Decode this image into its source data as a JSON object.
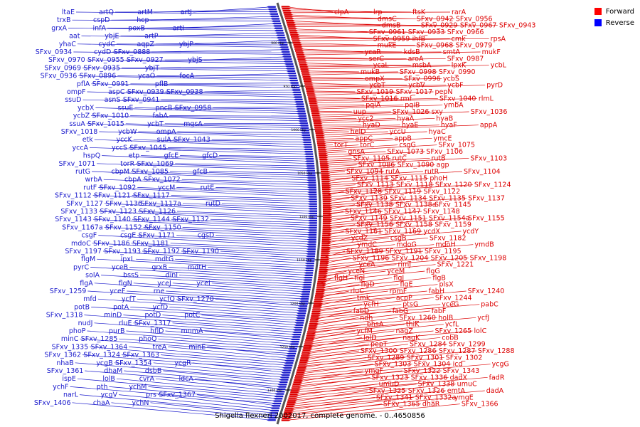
{
  "caption": "Shigella flexneri 2002017, complete genome. - 0..4650856",
  "legend": [
    {
      "label": "Forward",
      "color": "#ff0000"
    },
    {
      "label": "Reverse",
      "color": "#0000ff"
    }
  ],
  "colors": {
    "forward": "#dd0000",
    "reverse": "#1a1acc",
    "axis": "#555555",
    "tick": "#000000"
  },
  "ticks": [
    "900 kbp",
    "950 kbp",
    "1000 kbp",
    "1050 kbp",
    "1100 kbp",
    "1150 kbp",
    "1200 kbp",
    "1250 kbp",
    "1300 kbp"
  ],
  "reverse_labels": [
    "artJ",
    "artM",
    "artQ",
    "ltaE",
    "hcp",
    "cspD",
    "trxB",
    "artI",
    "poxB",
    "infA",
    "grxA",
    "artP",
    "ybjE",
    "aat",
    "ybjP",
    "aqpZ",
    "cydC",
    "yhaC",
    "SFxv_0888",
    "cydD",
    "SFxv_0934",
    "ybjS",
    "SFxv_0927",
    "SFxv_0955",
    "SFxv_0970",
    "ybjT",
    "SFxv_0935",
    "SFxv_0969",
    "focA",
    "ycaO",
    "SFxv_0896",
    "SFxv_0936",
    "pflB",
    "SFxv_0991",
    "pflA",
    "SFxv_0938",
    "SFxv_0939",
    "aspC",
    "ompF",
    "SFxv_0941",
    "asnS",
    "ssuD",
    "SFxv_0958",
    "pncB",
    "ssuE",
    "ycbX",
    "fabA",
    "SFxv_1010",
    "ycbZ",
    "mgsA",
    "ycbT",
    "SFxv_1015",
    "ssuA",
    "ompA",
    "ycbW",
    "SFxv_1018",
    "SFxv_1043",
    "sulA",
    "yccK",
    "etk",
    "SFxv_1045",
    "yccS",
    "yccA",
    "gfcD",
    "gfcE",
    "etp",
    "hspQ",
    "SFxv_1069",
    "torR",
    "SFxv_1071",
    "gfcB",
    "SFxv_1085",
    "cbpM",
    "rutG",
    "SFxv_1072",
    "cbpA",
    "wrbA",
    "rutE",
    "yccM",
    "SFxv_1092",
    "rutF",
    "SFxv_1117",
    "SFxv_1121",
    "SFxv_1112",
    "rutD",
    "SFxv_1117a",
    "SFxv_1136",
    "SFxv_1127",
    "SFxv_1126",
    "SFxv_1123",
    "SFxv_1133",
    "SFxv_1132",
    "SFxv_1144",
    "SFxv_1140",
    "SFxv_1143",
    "SFxv_1150",
    "SFxv_1152",
    "SFxv_1167a",
    "cgsD",
    "SFxv_1171",
    "csgE",
    "csgF",
    "SFxv_1181",
    "SFxv_1186",
    "mdoC",
    "SFxv_1190",
    "SFxv_1192",
    "SFxv_1193",
    "SFxv_1197",
    "mdtG",
    "ipxL",
    "flgM",
    "mdtH",
    "grxB",
    "yceB",
    "pyrC",
    "dinI",
    "bssS",
    "solA",
    "yceI",
    "yceJ",
    "flgN",
    "flgA",
    "rne",
    "yceF",
    "SFxv_1259",
    "SFxv_1270",
    "ycfQ",
    "ycfT",
    "mfd",
    "ycfD",
    "potA",
    "potB",
    "potC",
    "potD",
    "minD",
    "SFxv_1318",
    "SFxv_1317",
    "rluE",
    "nudJ",
    "mnmA",
    "hflD",
    "purB",
    "phoP",
    "phoQ",
    "SFxv_1285",
    "minC",
    "minE",
    "treA",
    "SFxv_1364",
    "SFxv_1335",
    "SFxv_1363",
    "SFxv_1324",
    "SFxv_1362",
    "ycgR",
    "SFxv_1354",
    "ycgB",
    "nhaB",
    "dsbB",
    "dhaM",
    "SFxv_1361",
    "ldcA",
    "cvrA",
    "lolB",
    "ispE",
    "ychM",
    "pth",
    "ychF",
    "SFxv_1367",
    "prs",
    "ycgV",
    "narL",
    "ychN",
    "chaA",
    "SFxv_1406"
  ],
  "forward_labels": [
    "clpA",
    "lrp",
    "ftsK",
    "rarA",
    "dmsC",
    "SFxv_0942",
    "SFxv_0956",
    "dmsB",
    "SFxv_0929",
    "SFxv_0967",
    "SFxv_0943",
    "SFxv_0961",
    "SFxv_0933",
    "SFxv_0966",
    "SFxv_0959",
    "ihfB",
    "cmk",
    "rpsA",
    "mukE",
    "SFxv_0968",
    "SFxv_0979",
    "ycaR",
    "kdsB",
    "smtA",
    "mukF",
    "serC",
    "aroA",
    "SFxv_0987",
    "ycaL",
    "msbA",
    "lpxK",
    "ycbL",
    "mukB",
    "SFxv_0998",
    "SFxv_0990",
    "ompX",
    "SFxv_0996",
    "ycbS",
    "ycbT",
    "ycbV",
    "ycbF",
    "pyrD",
    "SFxv_1019",
    "SFxv_1017",
    "pepN",
    "SFxv_1016",
    "rmf",
    "SFxv_1040",
    "rlmL",
    "pqiA",
    "pqiB",
    "ymbA",
    "uup",
    "SFxv_1026",
    "sxy",
    "SFxv_1036",
    "ycc2",
    "hyaA",
    "hyaB",
    "hyaD",
    "hyaE",
    "hyaF",
    "appA",
    "helD",
    "yccU",
    "hyaC",
    "appC",
    "appB",
    "ymcE",
    "torT",
    "torC",
    "csgG",
    "SFxv_1075",
    "gnsA",
    "SFxv_1073",
    "SFxv_1106",
    "SFxv_1105",
    "rutC",
    "rutB",
    "SFxv_1103",
    "SFxv_1086",
    "SFxv_1090",
    "agp",
    "SFxv_1094",
    "rutA",
    "rutR",
    "SFxv_1104",
    "SFxv_1114",
    "SFxv_1115",
    "phoH",
    "SFxv_1113",
    "SFxv_1118",
    "SFxv_1120",
    "SFxv_1124",
    "SFxv_1128",
    "SFxv_1119",
    "SFxv_1122",
    "SFxv_1139",
    "SFxv_1134",
    "SFxv_1135",
    "SFxv_1137",
    "SFxv_1138",
    "SFxv_1138a",
    "SFxv_1145",
    "SFxv_1146",
    "SFxv_1147",
    "SFxv_1148",
    "SFxv_1149",
    "SFxv_1151",
    "SFxv_1154a",
    "SFxv_1155",
    "SFxv_1156",
    "SFxv_1158",
    "SFxv_1159",
    "SFxv_1161",
    "SFxv_1169",
    "ycdX",
    "ycdY",
    "ycdZ",
    "csgB",
    "SFxv_1182",
    "ymdC",
    "mdoG",
    "mdoH",
    "ymdB",
    "SFxv_1189",
    "SFxv_1191",
    "SFxv_1195",
    "SFxv_1196",
    "SFxv_1204",
    "SFxv_1205",
    "SFxv_1198",
    "yceA",
    "rimJ",
    "SFxv_1221",
    "yceN",
    "yceM",
    "flgG",
    "flgH",
    "flgI",
    "flgJ",
    "flgB",
    "flgD",
    "flgE",
    "plsX",
    "rluC",
    "rpmF",
    "fabH",
    "SFxv_1240",
    "tmk",
    "acpP",
    "SFxv_1244",
    "ycfH",
    "ptsG",
    "yceG",
    "pabC",
    "fabD",
    "fabG",
    "fabF",
    "ndh",
    "SFxv_1260",
    "holB",
    "ycfJ",
    "bhsA",
    "thiK",
    "ycfL",
    "ycfM",
    "nagZ",
    "SFxv_1265",
    "lolC",
    "lolD",
    "nagK",
    "cobB",
    "pepT",
    "SFxv_1284",
    "SFxv_1299",
    "SFxv_1300",
    "SFxv_1286",
    "SFxv_1287",
    "SFxv_1288",
    "SFxv_1289",
    "SFxv_1301",
    "SFxv_1302",
    "SFxv_1303",
    "SFxv_1304",
    "icd",
    "ycgG",
    "ymgF",
    "SFxv_1322",
    "SFxv_1343",
    "SFxv_1323",
    "SFxv_1336",
    "dadX",
    "fadR",
    "umuD",
    "SFxv_1338",
    "umuC",
    "SFxv_1325",
    "SFxv_1326",
    "emtA",
    "dadA",
    "SFxv_1341",
    "SFxv_1332a",
    "ymgE",
    "SFxv_1365",
    "dhaR",
    "SFxv_1366"
  ]
}
